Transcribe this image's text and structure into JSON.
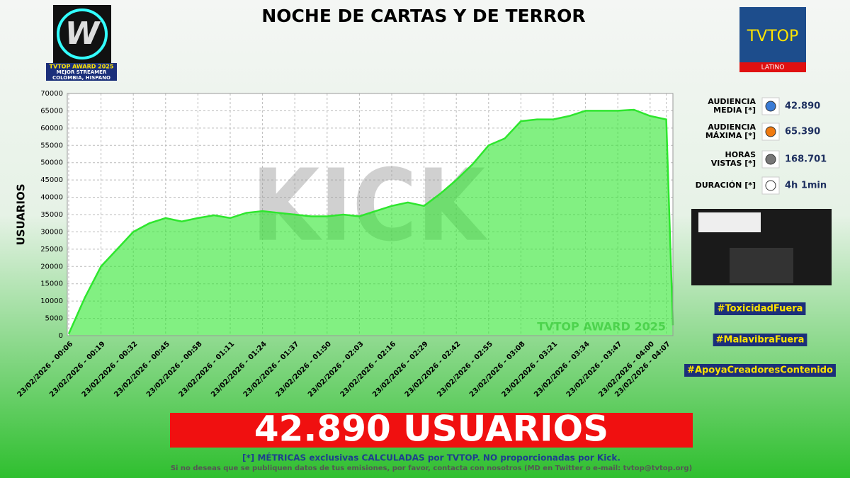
{
  "header": {
    "title": "NOCHE DE CARTAS Y DE TERROR",
    "badge_lines": [
      "TVTOP AWARD 2025",
      "MEJOR STREAMER",
      "COLOMBIA, HISPANO"
    ],
    "logo_text": "TVTOP",
    "logo_subtext": "LATINO"
  },
  "chart_data": {
    "type": "area",
    "y_label": "USUARIOS",
    "watermark": "TVTOP AWARD 2025",
    "background_logo": "KICK",
    "categories": [
      "23/02/2026 - 00:06",
      null,
      "23/02/2026 - 00:19",
      null,
      "23/02/2026 - 00:32",
      null,
      "23/02/2026 - 00:45",
      null,
      "23/02/2026 - 00:58",
      null,
      "23/02/2026 - 01:11",
      null,
      "23/02/2026 - 01:24",
      null,
      "23/02/2026 - 01:37",
      null,
      "23/02/2026 - 01:50",
      null,
      "23/02/2026 - 02:03",
      null,
      "23/02/2026 - 02:16",
      null,
      "23/02/2026 - 02:29",
      null,
      "23/02/2026 - 02:42",
      null,
      "23/02/2026 - 02:55",
      null,
      "23/02/2026 - 03:08",
      null,
      "23/02/2026 - 03:21",
      null,
      "23/02/2026 - 03:34",
      null,
      "23/02/2026 - 03:47",
      null,
      "23/02/2026 - 04:00",
      "23/02/2026 - 04:07",
      null
    ],
    "values": [
      500,
      11000,
      20000,
      25000,
      30000,
      32500,
      34000,
      33000,
      34000,
      34800,
      34000,
      35500,
      36000,
      35500,
      35000,
      34500,
      34500,
      35000,
      34500,
      36000,
      37500,
      38500,
      37500,
      41000,
      45000,
      49500,
      55000,
      57000,
      62000,
      62500,
      62500,
      63500,
      65000,
      65000,
      65000,
      65300,
      63500,
      62500,
      3000
    ],
    "color": "#2ee62e",
    "ylim": [
      0,
      70000
    ],
    "yticks": [
      0,
      5000,
      10000,
      15000,
      20000,
      25000,
      30000,
      35000,
      40000,
      45000,
      50000,
      55000,
      60000,
      65000,
      70000
    ],
    "grid": true
  },
  "stats": [
    {
      "label": [
        "AUDIENCIA",
        "MEDIA [*]"
      ],
      "value": "42.890"
    },
    {
      "label": [
        "AUDIENCIA",
        "MÁXIMA [*]"
      ],
      "value": "65.390"
    },
    {
      "label": [
        "HORAS",
        "VISTAS [*]"
      ],
      "value": "168.701"
    },
    {
      "label": [
        "DURACIÓN [*]"
      ],
      "value": "4h 1min"
    }
  ],
  "hashtags": [
    "#ToxicidadFuera",
    "#MalavibraFuera",
    "#ApoyaCreadoresContenido"
  ],
  "banner": "42.890 USUARIOS",
  "footer": [
    "[*] MÉTRICAS exclusivas CALCULADAS por TVTOP. NO proporcionadas por Kick.",
    "Si no deseas que se publiquen datos de tus emisiones, por favor, contacta con nosotros (MD en Twitter o e-mail: tvtop@tvtop.org)"
  ]
}
